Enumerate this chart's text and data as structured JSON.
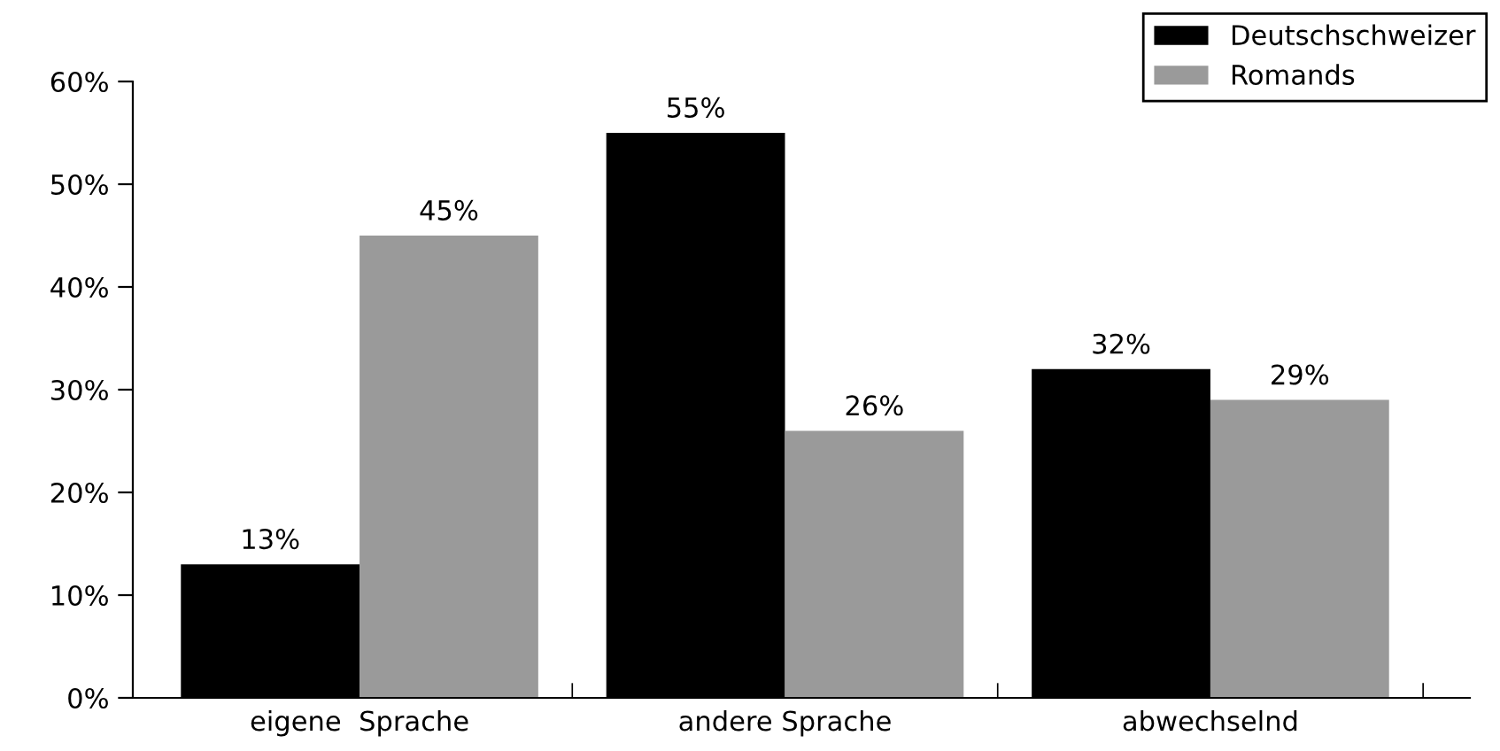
{
  "chart_data": {
    "type": "bar",
    "categories": [
      "eigene  Sprache",
      "andere Sprache",
      "abwechselnd"
    ],
    "series": [
      {
        "name": "Deutschschweizer",
        "color": "#000000",
        "values": [
          13,
          55,
          32
        ]
      },
      {
        "name": "Romands",
        "color": "#9a9a9a",
        "values": [
          45,
          26,
          29
        ]
      }
    ],
    "ylim": [
      0,
      60
    ],
    "yticks": [
      {
        "value": 0,
        "label": "0%"
      },
      {
        "value": 10,
        "label": "10%"
      },
      {
        "value": 20,
        "label": "20%"
      },
      {
        "value": 30,
        "label": "30%"
      },
      {
        "value": 40,
        "label": "40%"
      },
      {
        "value": 50,
        "label": "50%"
      },
      {
        "value": 60,
        "label": "60%"
      }
    ],
    "value_labels": [
      [
        "13%",
        "55%",
        "32%"
      ],
      [
        "45%",
        "26%",
        "29%"
      ]
    ],
    "grid": false,
    "legend": "top right"
  }
}
